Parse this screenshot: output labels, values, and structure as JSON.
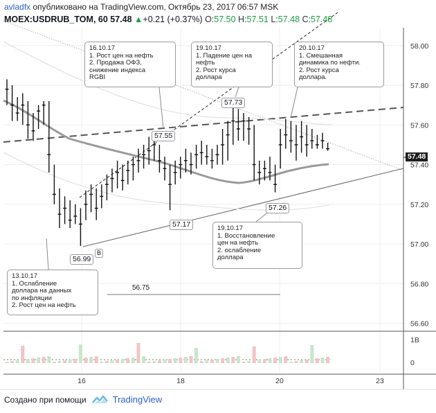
{
  "header": {
    "author": "avladfx",
    "published": "опубликовано на TradingView.com, Октябрь 23, 2017 06:57 MSK"
  },
  "symbol": {
    "name": "MOEX:USDRUB_TOM, 60",
    "last": "57.48",
    "change": "+0.21 (+0.37%)",
    "open_label": "O:",
    "open": "57.50",
    "high_label": "H:",
    "high": "57.51",
    "low_label": "L:",
    "low": "57.48",
    "close_label": "C:",
    "close": "57.48"
  },
  "footer": {
    "created_with": "Создано при помощи",
    "brand": "TradingView"
  },
  "colors": {
    "candle": "#111111",
    "grid": "#eeeeee",
    "ma": "#9a9a9a",
    "trend": "#666666",
    "vol_up": "#c8e6c9",
    "vol_down": "#f3c4c4",
    "price_tag": "#1e1e1e",
    "brand": "#2a62c9"
  },
  "chart_data": {
    "type": "candlestick",
    "x_ticks": [
      "16",
      "18",
      "20",
      "23"
    ],
    "y_ticks": [
      "58.00",
      "57.80",
      "57.60",
      "57.40",
      "57.20",
      "57.00",
      "56.80",
      "56.60"
    ],
    "ylim": [
      56.56,
      58.09
    ],
    "volume_ticks": [
      "1B",
      "0"
    ],
    "last_price": "57.48",
    "price_labels": {
      "p5699": "56.99",
      "p5717": "57.17",
      "p5755": "57.55",
      "p5773": "57.73",
      "p5726": "57.26",
      "p5675": "56.75"
    },
    "marker_b": "B",
    "annotations": [
      {
        "date": "13.10.17",
        "lines": [
          "1. Ослабление",
          "доллара на данных",
          "по инфляции",
          "2. Рост цен на нефть"
        ]
      },
      {
        "date": "16.10.17",
        "lines": [
          "1. Рост цен на нефть",
          "2. Продажа ОФЗ,",
          "снижение индекса",
          "RGBI"
        ]
      },
      {
        "date": "19.10.17",
        "lines": [
          "1. Падение цен на",
          "нефть",
          "2. Рост курса",
          "доллара"
        ]
      },
      {
        "date": "20.10.17",
        "lines": [
          "1. Смешанная",
          "динамика по нефти.",
          "2. Рост курса",
          "доллара."
        ]
      },
      {
        "date": "19.10.17",
        "lines": [
          "1. Восстановление",
          "цен на нефть",
          "2. ослабление",
          "доллара"
        ]
      }
    ],
    "candles": [
      {
        "t": 0,
        "h": 57.83,
        "l": 57.7,
        "v": 57.78
      },
      {
        "t": 1,
        "h": 57.8,
        "l": 57.62,
        "v": 57.7
      },
      {
        "t": 2,
        "h": 57.74,
        "l": 57.62,
        "v": 57.66
      },
      {
        "t": 3,
        "h": 57.76,
        "l": 57.6,
        "v": 57.7
      },
      {
        "t": 4,
        "h": 57.72,
        "l": 57.53,
        "v": 57.6
      },
      {
        "t": 5,
        "h": 57.66,
        "l": 57.52,
        "v": 57.57
      },
      {
        "t": 6,
        "h": 57.7,
        "l": 57.58,
        "v": 57.67
      },
      {
        "t": 7,
        "h": 57.72,
        "l": 57.6,
        "v": 57.7
      },
      {
        "t": 8,
        "h": 57.72,
        "l": 57.36,
        "v": 57.45
      },
      {
        "t": 9,
        "h": 57.4,
        "l": 57.2,
        "v": 57.25
      },
      {
        "t": 10,
        "h": 57.28,
        "l": 57.08,
        "v": 57.15
      },
      {
        "t": 11,
        "h": 57.24,
        "l": 57.1,
        "v": 57.18
      },
      {
        "t": 12,
        "h": 57.22,
        "l": 57.08,
        "v": 57.12
      },
      {
        "t": 13,
        "h": 57.2,
        "l": 57.1,
        "v": 57.14
      },
      {
        "t": 14,
        "h": 57.18,
        "l": 56.99,
        "v": 57.1
      },
      {
        "t": 15,
        "h": 57.27,
        "l": 57.12,
        "v": 57.2
      },
      {
        "t": 16,
        "h": 57.3,
        "l": 57.16,
        "v": 57.25
      },
      {
        "t": 17,
        "h": 57.28,
        "l": 57.12,
        "v": 57.18
      },
      {
        "t": 18,
        "h": 57.3,
        "l": 57.18,
        "v": 57.24
      },
      {
        "t": 19,
        "h": 57.35,
        "l": 57.22,
        "v": 57.3
      },
      {
        "t": 20,
        "h": 57.38,
        "l": 57.26,
        "v": 57.33
      },
      {
        "t": 21,
        "h": 57.42,
        "l": 57.28,
        "v": 57.36
      },
      {
        "t": 22,
        "h": 57.4,
        "l": 57.27,
        "v": 57.32
      },
      {
        "t": 23,
        "h": 57.42,
        "l": 57.3,
        "v": 57.37
      },
      {
        "t": 24,
        "h": 57.44,
        "l": 57.32,
        "v": 57.4
      },
      {
        "t": 25,
        "h": 57.48,
        "l": 57.36,
        "v": 57.42
      },
      {
        "t": 26,
        "h": 57.5,
        "l": 57.38,
        "v": 57.45
      },
      {
        "t": 27,
        "h": 57.54,
        "l": 57.4,
        "v": 57.47
      },
      {
        "t": 28,
        "h": 57.55,
        "l": 57.42,
        "v": 57.5
      },
      {
        "t": 29,
        "h": 57.5,
        "l": 57.36,
        "v": 57.42
      },
      {
        "t": 30,
        "h": 57.44,
        "l": 57.32,
        "v": 57.38
      },
      {
        "t": 31,
        "h": 57.4,
        "l": 57.17,
        "v": 57.3
      },
      {
        "t": 32,
        "h": 57.42,
        "l": 57.3,
        "v": 57.36
      },
      {
        "t": 33,
        "h": 57.44,
        "l": 57.33,
        "v": 57.4
      },
      {
        "t": 34,
        "h": 57.48,
        "l": 57.36,
        "v": 57.42
      },
      {
        "t": 35,
        "h": 57.46,
        "l": 57.35,
        "v": 57.4
      },
      {
        "t": 36,
        "h": 57.5,
        "l": 57.38,
        "v": 57.45
      },
      {
        "t": 37,
        "h": 57.52,
        "l": 57.4,
        "v": 57.46
      },
      {
        "t": 38,
        "h": 57.5,
        "l": 57.4,
        "v": 57.44
      },
      {
        "t": 39,
        "h": 57.48,
        "l": 57.38,
        "v": 57.42
      },
      {
        "t": 40,
        "h": 57.5,
        "l": 57.4,
        "v": 57.45
      },
      {
        "t": 41,
        "h": 57.58,
        "l": 57.4,
        "v": 57.5
      },
      {
        "t": 42,
        "h": 57.62,
        "l": 57.42,
        "v": 57.55
      },
      {
        "t": 43,
        "h": 57.73,
        "l": 57.5,
        "v": 57.62
      },
      {
        "t": 44,
        "h": 57.68,
        "l": 57.52,
        "v": 57.58
      },
      {
        "t": 45,
        "h": 57.66,
        "l": 57.52,
        "v": 57.62
      },
      {
        "t": 46,
        "h": 57.64,
        "l": 57.5,
        "v": 57.58
      },
      {
        "t": 47,
        "h": 57.6,
        "l": 57.32,
        "v": 57.4
      },
      {
        "t": 48,
        "h": 57.42,
        "l": 57.3,
        "v": 57.36
      },
      {
        "t": 49,
        "h": 57.42,
        "l": 57.32,
        "v": 57.38
      },
      {
        "t": 50,
        "h": 57.44,
        "l": 57.32,
        "v": 57.36
      },
      {
        "t": 51,
        "h": 57.4,
        "l": 57.26,
        "v": 57.3
      },
      {
        "t": 52,
        "h": 57.58,
        "l": 57.38,
        "v": 57.5
      },
      {
        "t": 53,
        "h": 57.63,
        "l": 57.48,
        "v": 57.55
      },
      {
        "t": 54,
        "h": 57.62,
        "l": 57.46,
        "v": 57.52
      },
      {
        "t": 55,
        "h": 57.6,
        "l": 57.42,
        "v": 57.5
      },
      {
        "t": 56,
        "h": 57.62,
        "l": 57.46,
        "v": 57.54
      },
      {
        "t": 57,
        "h": 57.6,
        "l": 57.44,
        "v": 57.5
      },
      {
        "t": 58,
        "h": 57.58,
        "l": 57.48,
        "v": 57.52
      },
      {
        "t": 59,
        "h": 57.55,
        "l": 57.48,
        "v": 57.5
      },
      {
        "t": 60,
        "h": 57.56,
        "l": 57.48,
        "v": 57.52
      },
      {
        "t": 61,
        "h": 57.51,
        "l": 57.47,
        "v": 57.48
      }
    ]
  }
}
